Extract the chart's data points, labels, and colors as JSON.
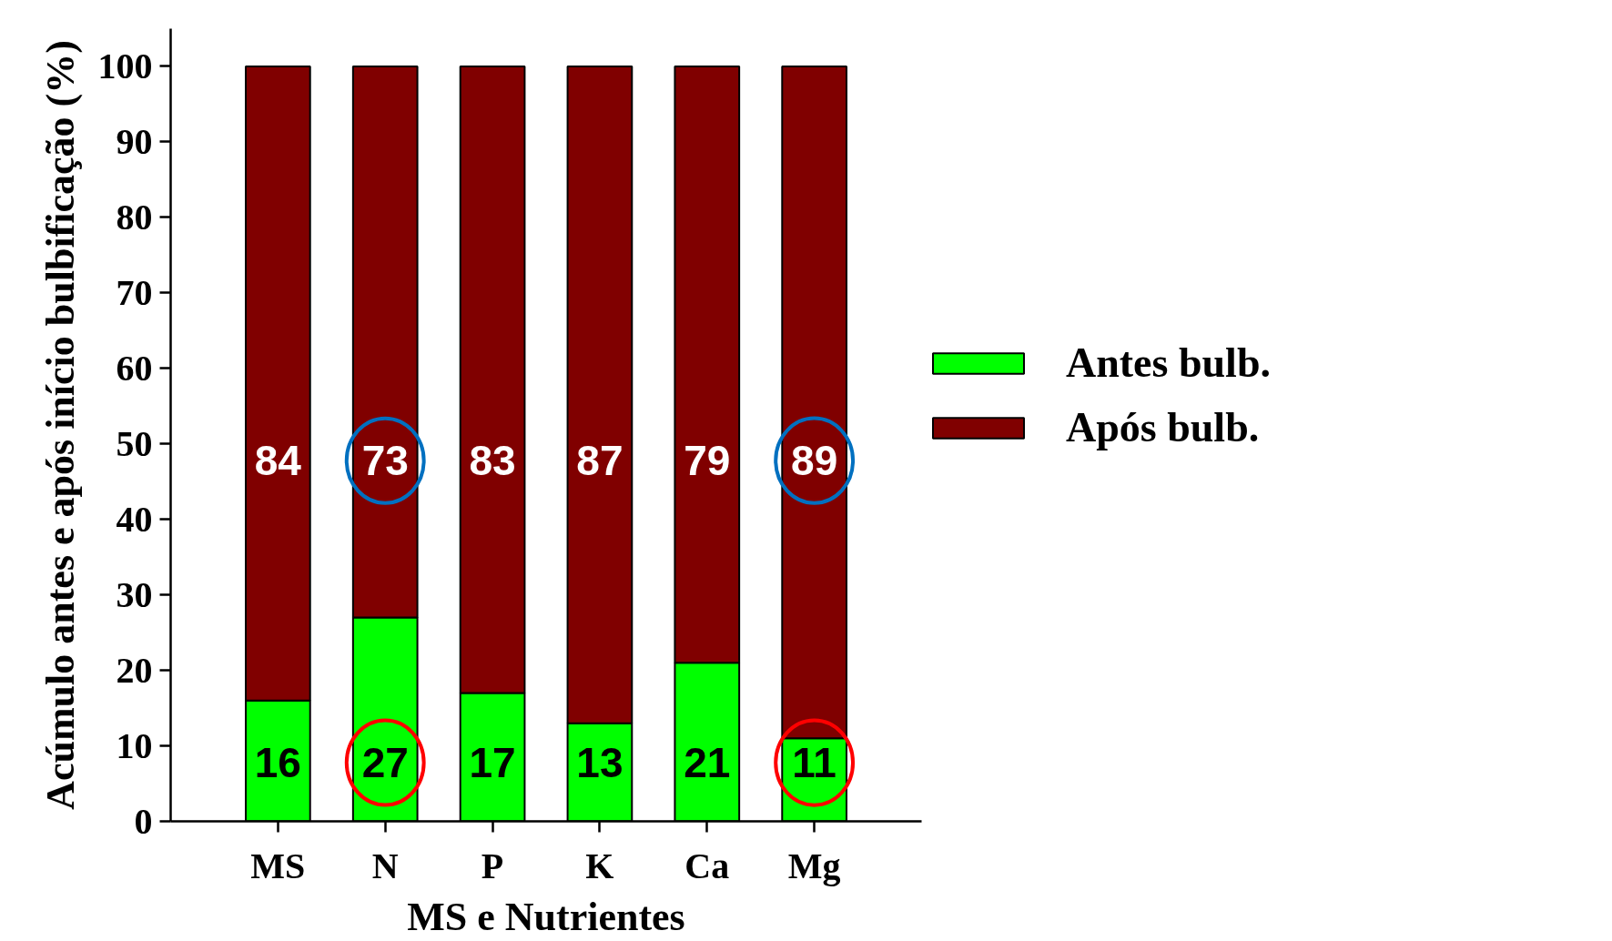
{
  "chart_data": {
    "type": "bar",
    "stacked": true,
    "categories": [
      "MS",
      "N",
      "P",
      "K",
      "Ca",
      "Mg"
    ],
    "series": [
      {
        "name": "Antes bulb.",
        "color": "#00ff00",
        "values": [
          16,
          27,
          17,
          13,
          21,
          11
        ]
      },
      {
        "name": "Após bulb.",
        "color": "#800000",
        "values": [
          84,
          73,
          83,
          87,
          79,
          89
        ]
      }
    ],
    "xlabel": "MS e Nutrientes",
    "ylabel": "Acúmulo antes e após início bulbificação (%)",
    "ylim": [
      0,
      105
    ],
    "yticks": [
      0,
      10,
      20,
      30,
      40,
      50,
      60,
      70,
      80,
      90,
      100
    ],
    "data_labels": true,
    "legend": "right",
    "grid": false
  }
}
